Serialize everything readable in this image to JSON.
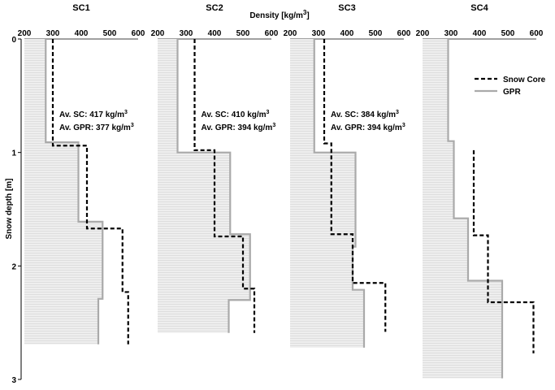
{
  "chart_data": {
    "type": "line",
    "x_axis_label": "Density [kg/m",
    "x_axis_label_sup": "3",
    "x_axis_label_end": "]",
    "y_axis_label": "Snow depth [m]",
    "xlim": [
      200,
      600
    ],
    "ylim": [
      0,
      3
    ],
    "x_ticks": [
      "200",
      "300",
      "400",
      "500",
      "600"
    ],
    "y_ticks": [
      "0",
      "1",
      "2",
      "3"
    ],
    "legend": {
      "snow_core": "Snow Core",
      "gpr": "GPR",
      "position": "top-right"
    },
    "series_colors": {
      "snow_core": "#000000",
      "gpr": "#aaaaaa",
      "fill": "#e8e8e8"
    },
    "panels": [
      {
        "title": "SC1",
        "annotation_sc": "Av. SC: 417 kg/m",
        "annotation_gpr": "Av. GPR: 377 kg/m",
        "gpr_steps": [
          [
            0,
            0.91,
            275
          ],
          [
            0.91,
            1.61,
            390
          ],
          [
            1.61,
            2.29,
            475
          ],
          [
            2.29,
            2.69,
            460
          ]
        ],
        "core_steps": [
          [
            0,
            0.94,
            300
          ],
          [
            0.94,
            1.67,
            420
          ],
          [
            1.67,
            2.23,
            545
          ],
          [
            2.23,
            2.69,
            565
          ]
        ]
      },
      {
        "title": "SC2",
        "annotation_sc": "Av. SC: 410 kg/m",
        "annotation_gpr": "Av. GPR: 394 kg/m",
        "gpr_steps": [
          [
            0,
            1.0,
            270
          ],
          [
            1.0,
            1.72,
            455
          ],
          [
            1.72,
            2.3,
            525
          ],
          [
            2.3,
            2.59,
            450
          ]
        ],
        "core_steps": [
          [
            0,
            0.98,
            330
          ],
          [
            0.98,
            1.74,
            400
          ],
          [
            1.74,
            2.2,
            500
          ],
          [
            2.2,
            2.59,
            540
          ]
        ]
      },
      {
        "title": "SC3",
        "annotation_sc": "Av. SC: 384 kg/m",
        "annotation_gpr": "Av. GPR: 394 kg/m",
        "gpr_steps": [
          [
            0,
            1.0,
            285
          ],
          [
            1.0,
            1.83,
            430
          ],
          [
            1.83,
            2.21,
            420
          ],
          [
            2.21,
            2.72,
            460
          ]
        ],
        "core_steps": [
          [
            0,
            0.92,
            320
          ],
          [
            0.92,
            1.72,
            345
          ],
          [
            1.72,
            2.15,
            420
          ],
          [
            2.15,
            2.58,
            535
          ]
        ]
      },
      {
        "title": "SC4",
        "annotation_sc": "",
        "annotation_gpr": "",
        "gpr_steps": [
          [
            0,
            0.9,
            290
          ],
          [
            0.9,
            1.58,
            310
          ],
          [
            1.58,
            2.13,
            360
          ],
          [
            2.13,
            2.99,
            480
          ]
        ],
        "core_steps": [
          [
            0.98,
            1.73,
            380
          ],
          [
            1.73,
            2.32,
            430
          ],
          [
            2.32,
            2.77,
            590
          ]
        ]
      }
    ]
  }
}
